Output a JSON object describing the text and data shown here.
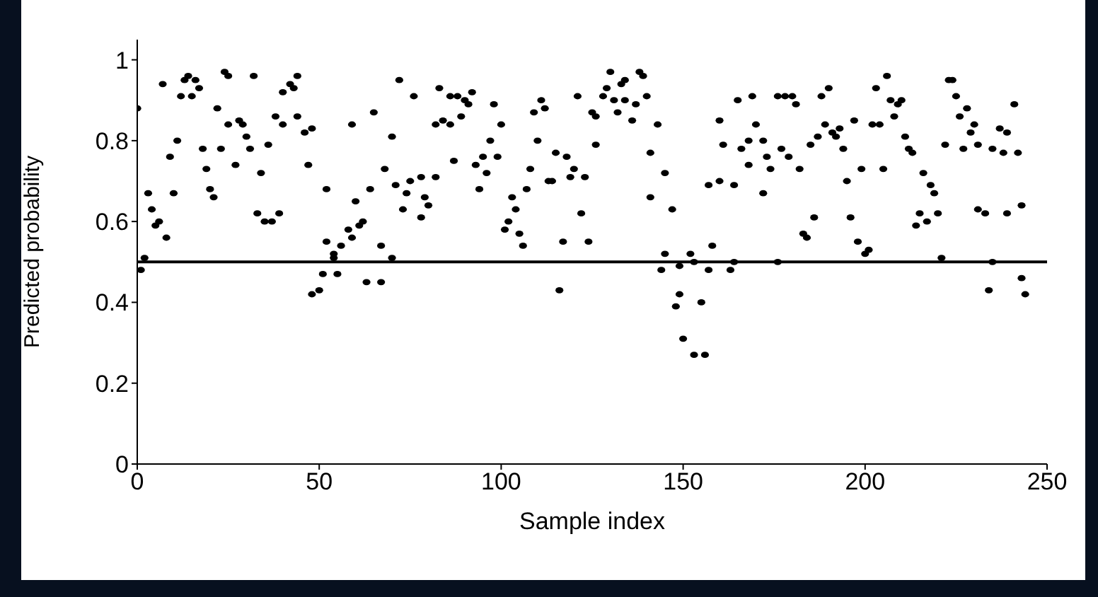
{
  "chart_data": {
    "type": "scatter",
    "xlabel": "Sample index",
    "ylabel": "Predicted probability",
    "x": [
      0,
      1,
      2,
      3,
      4,
      5,
      6,
      7,
      8,
      9,
      10,
      11,
      12,
      13,
      14,
      15,
      16,
      17,
      18,
      19,
      20,
      21,
      22,
      23,
      24,
      25,
      25,
      27,
      28,
      29,
      30,
      31,
      32,
      34,
      33,
      35,
      37,
      36,
      38,
      39,
      40,
      40,
      42,
      43,
      44,
      44,
      46,
      47,
      48,
      48,
      50,
      51,
      52,
      52,
      54,
      54,
      55,
      56,
      58,
      59,
      59,
      60,
      61,
      62,
      63,
      64,
      65,
      67,
      67,
      68,
      70,
      70,
      71,
      72,
      73,
      74,
      75,
      76,
      78,
      78,
      79,
      80,
      82,
      82,
      83,
      84,
      86,
      86,
      87,
      88,
      89,
      90,
      91,
      92,
      93,
      94,
      95,
      96,
      97,
      98,
      99,
      100,
      101,
      102,
      103,
      104,
      105,
      106,
      107,
      108,
      109,
      110,
      111,
      112,
      113,
      114,
      115,
      116,
      117,
      118,
      119,
      120,
      121,
      122,
      123,
      124,
      125,
      126,
      126,
      128,
      129,
      130,
      131,
      132,
      133,
      134,
      134,
      136,
      137,
      138,
      139,
      140,
      141,
      141,
      143,
      144,
      145,
      145,
      147,
      148,
      149,
      149,
      150,
      152,
      153,
      153,
      155,
      156,
      157,
      157,
      158,
      160,
      160,
      161,
      163,
      164,
      164,
      165,
      166,
      168,
      168,
      169,
      170,
      172,
      172,
      173,
      174,
      176,
      176,
      177,
      178,
      179,
      180,
      181,
      182,
      183,
      184,
      185,
      186,
      187,
      188,
      189,
      190,
      191,
      192,
      193,
      194,
      195,
      196,
      197,
      198,
      199,
      200,
      201,
      202,
      203,
      204,
      205,
      206,
      207,
      208,
      209,
      210,
      211,
      212,
      213,
      214,
      215,
      216,
      217,
      218,
      219,
      220,
      221,
      222,
      223,
      224,
      225,
      226,
      227,
      228,
      229,
      230,
      231,
      231,
      233,
      234,
      235,
      235,
      237,
      238,
      239,
      239,
      241,
      242,
      243,
      243,
      244
    ],
    "values": [
      0.88,
      0.48,
      0.51,
      0.67,
      0.63,
      0.59,
      0.6,
      0.94,
      0.56,
      0.76,
      0.67,
      0.8,
      0.91,
      0.95,
      0.96,
      0.91,
      0.95,
      0.93,
      0.78,
      0.73,
      0.68,
      0.66,
      0.88,
      0.78,
      0.97,
      0.84,
      0.96,
      0.74,
      0.85,
      0.84,
      0.81,
      0.78,
      0.96,
      0.72,
      0.62,
      0.6,
      0.6,
      0.79,
      0.86,
      0.62,
      0.84,
      0.92,
      0.94,
      0.93,
      0.96,
      0.86,
      0.82,
      0.74,
      0.83,
      0.42,
      0.43,
      0.47,
      0.68,
      0.55,
      0.51,
      0.52,
      0.47,
      0.54,
      0.58,
      0.56,
      0.84,
      0.65,
      0.59,
      0.6,
      0.45,
      0.68,
      0.87,
      0.45,
      0.54,
      0.73,
      0.51,
      0.81,
      0.69,
      0.95,
      0.63,
      0.67,
      0.7,
      0.91,
      0.61,
      0.71,
      0.66,
      0.64,
      0.71,
      0.84,
      0.93,
      0.85,
      0.91,
      0.84,
      0.75,
      0.91,
      0.86,
      0.9,
      0.89,
      0.92,
      0.74,
      0.68,
      0.76,
      0.72,
      0.8,
      0.89,
      0.76,
      0.84,
      0.58,
      0.6,
      0.66,
      0.63,
      0.57,
      0.54,
      0.68,
      0.73,
      0.87,
      0.8,
      0.9,
      0.88,
      0.7,
      0.7,
      0.77,
      0.43,
      0.55,
      0.76,
      0.71,
      0.73,
      0.91,
      0.62,
      0.71,
      0.55,
      0.87,
      0.79,
      0.86,
      0.91,
      0.93,
      0.97,
      0.9,
      0.87,
      0.94,
      0.95,
      0.9,
      0.85,
      0.89,
      0.97,
      0.96,
      0.91,
      0.66,
      0.77,
      0.84,
      0.48,
      0.52,
      0.72,
      0.63,
      0.39,
      0.49,
      0.42,
      0.31,
      0.52,
      0.5,
      0.27,
      0.4,
      0.27,
      0.48,
      0.69,
      0.54,
      0.7,
      0.85,
      0.79,
      0.48,
      0.5,
      0.69,
      0.9,
      0.78,
      0.8,
      0.74,
      0.91,
      0.84,
      0.67,
      0.8,
      0.76,
      0.73,
      0.5,
      0.91,
      0.78,
      0.91,
      0.76,
      0.91,
      0.89,
      0.73,
      0.57,
      0.56,
      0.79,
      0.61,
      0.81,
      0.91,
      0.84,
      0.93,
      0.82,
      0.81,
      0.83,
      0.78,
      0.7,
      0.61,
      0.85,
      0.55,
      0.73,
      0.52,
      0.53,
      0.84,
      0.93,
      0.84,
      0.73,
      0.96,
      0.9,
      0.86,
      0.89,
      0.9,
      0.81,
      0.78,
      0.77,
      0.59,
      0.62,
      0.72,
      0.6,
      0.69,
      0.67,
      0.62,
      0.51,
      0.79,
      0.95,
      0.95,
      0.91,
      0.86,
      0.78,
      0.88,
      0.82,
      0.84,
      0.63,
      0.79,
      0.62,
      0.43,
      0.5,
      0.78,
      0.83,
      0.77,
      0.62,
      0.82,
      0.89,
      0.77,
      0.64,
      0.46,
      0.42
    ],
    "xlim": [
      0,
      250
    ],
    "xticks": [
      0,
      50,
      100,
      150,
      200,
      250
    ],
    "ylim": [
      0,
      1.05
    ],
    "yticks": [
      0,
      0.2,
      0.4,
      0.6,
      0.8,
      1
    ],
    "color": "#000000",
    "marker": "circle",
    "grid": false,
    "legend": false,
    "ref_lines": [
      {
        "axis": "y",
        "value": 0.5,
        "color": "#000000",
        "line_style": "solid"
      }
    ]
  }
}
